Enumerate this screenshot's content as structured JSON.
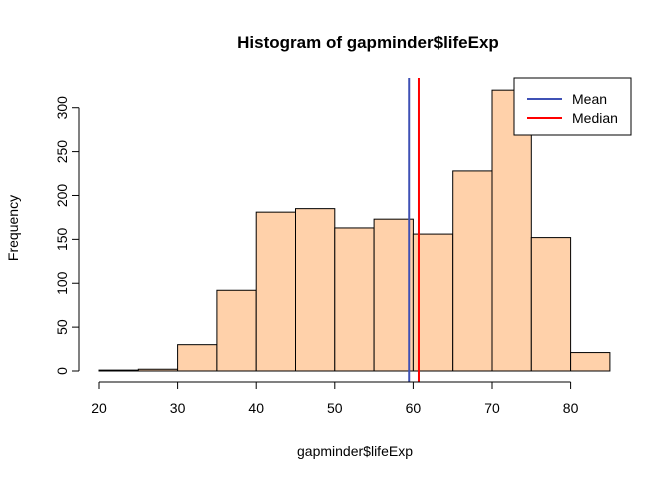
{
  "chart_data": {
    "type": "bar",
    "title": "Histogram of gapminder$lifeExp",
    "xlabel": "gapminder$lifeExp",
    "ylabel": "Frequency",
    "bins": [
      {
        "from": 20,
        "to": 25,
        "count": 1
      },
      {
        "from": 25,
        "to": 30,
        "count": 2
      },
      {
        "from": 30,
        "to": 35,
        "count": 30
      },
      {
        "from": 35,
        "to": 40,
        "count": 92
      },
      {
        "from": 40,
        "to": 45,
        "count": 181
      },
      {
        "from": 45,
        "to": 50,
        "count": 185
      },
      {
        "from": 50,
        "to": 55,
        "count": 163
      },
      {
        "from": 55,
        "to": 60,
        "count": 173
      },
      {
        "from": 60,
        "to": 65,
        "count": 156
      },
      {
        "from": 65,
        "to": 70,
        "count": 228
      },
      {
        "from": 70,
        "to": 75,
        "count": 320
      },
      {
        "from": 75,
        "to": 80,
        "count": 152
      },
      {
        "from": 80,
        "to": 85,
        "count": 21
      }
    ],
    "xticks": [
      20,
      30,
      40,
      50,
      60,
      70,
      80
    ],
    "yticks": [
      0,
      50,
      100,
      150,
      200,
      250,
      300
    ],
    "xlim": [
      20,
      85
    ],
    "ylim": [
      0,
      320
    ],
    "bar_color": "#FFD1AA",
    "bar_border": "#000000",
    "grid": false,
    "vlines": [
      {
        "name": "Mean",
        "value": 59.47,
        "color": "#3F51B5"
      },
      {
        "name": "Median",
        "value": 60.71,
        "color": "#FF0000"
      }
    ],
    "legend": {
      "placement": "top-right",
      "entries": [
        {
          "label": "Mean",
          "color": "#3F51B5"
        },
        {
          "label": "Median",
          "color": "#FF0000"
        }
      ]
    }
  }
}
